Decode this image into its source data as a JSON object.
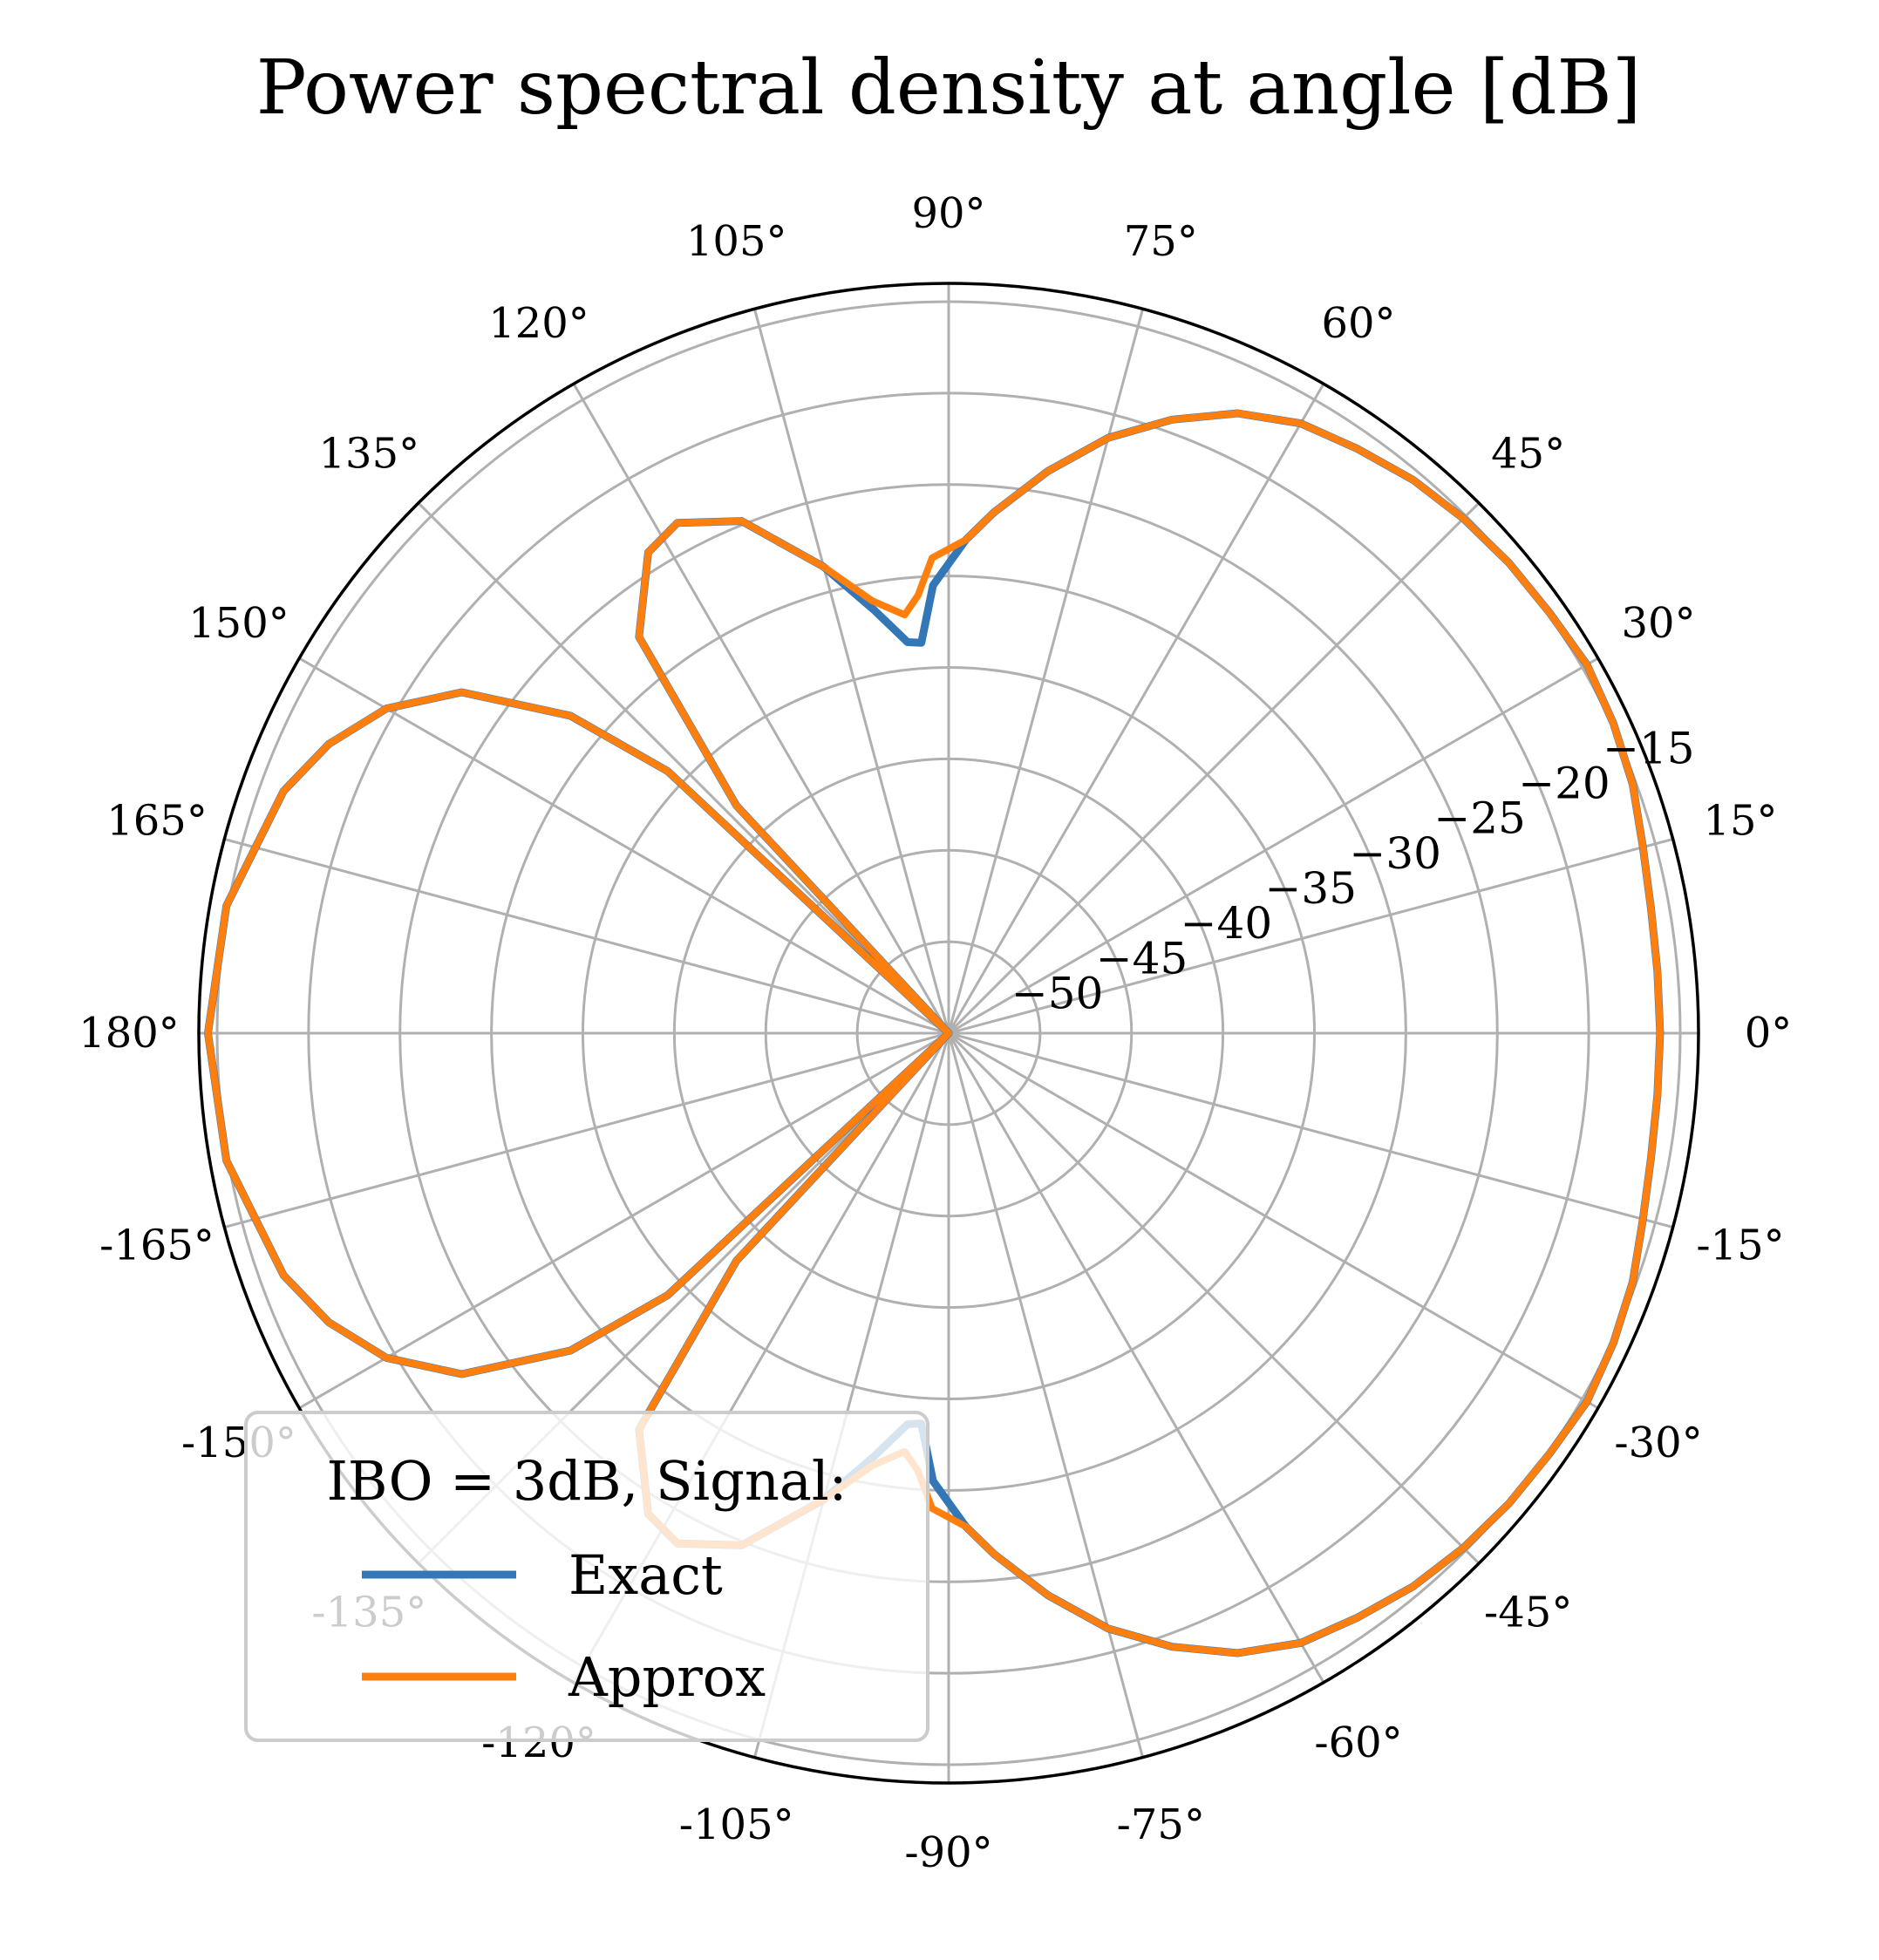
{
  "chart_data": {
    "type": "line",
    "projection": "polar",
    "title": "Power spectral density at angle [dB]",
    "theta_unit": "degrees",
    "theta_range": [
      -180,
      180
    ],
    "theta_ticks": [
      "0°",
      "15°",
      "30°",
      "45°",
      "60°",
      "75°",
      "90°",
      "105°",
      "120°",
      "135°",
      "150°",
      "165°",
      "180°",
      "-165°",
      "-150°",
      "-135°",
      "-120°",
      "-105°",
      "-90°",
      "-75°",
      "-60°",
      "-45°",
      "-30°",
      "-15°"
    ],
    "theta_tick_values": [
      0,
      15,
      30,
      45,
      60,
      75,
      90,
      105,
      120,
      135,
      150,
      165,
      180,
      -165,
      -150,
      -135,
      -120,
      -105,
      -90,
      -75,
      -60,
      -45,
      -30,
      -15
    ],
    "r_range": [
      -55,
      -14
    ],
    "r_ticks": [
      "−50",
      "−45",
      "−40",
      "−35",
      "−30",
      "−25",
      "−20",
      "−15"
    ],
    "r_tick_values": [
      -50,
      -45,
      -40,
      -35,
      -30,
      -25,
      -20,
      -15
    ],
    "r_label_angle": 22.5,
    "grid": true,
    "legend": {
      "title": "IBO = 3dB, Signal:",
      "placement": "lower-left",
      "entries": [
        "Exact",
        "Approx"
      ]
    },
    "series": [
      {
        "name": "Exact",
        "color": "#3477b6",
        "points": [
          [
            -180,
            -14.5
          ],
          [
            -170,
            -14.9
          ],
          [
            -160,
            -16.3
          ],
          [
            -155,
            -17.6
          ],
          [
            -150,
            -19.5
          ],
          [
            -145,
            -22.5
          ],
          [
            -140,
            -28.0
          ],
          [
            -137,
            -34.0
          ],
          [
            -135,
            -55.0
          ],
          [
            -133,
            -38.0
          ],
          [
            -128,
            -27.5
          ],
          [
            -122,
            -24.0
          ],
          [
            -118,
            -23.4
          ],
          [
            -112,
            -24.8
          ],
          [
            -105,
            -28.6
          ],
          [
            -100,
            -31.5
          ],
          [
            -96,
            -33.5
          ],
          [
            -94,
            -33.6
          ],
          [
            -92,
            -30.5
          ],
          [
            -88,
            -28.0
          ],
          [
            -85,
            -26.4
          ],
          [
            -80,
            -23.8
          ],
          [
            -75,
            -21.3
          ],
          [
            -70,
            -19.3
          ],
          [
            -65,
            -17.6
          ],
          [
            -60,
            -16.5
          ],
          [
            -55,
            -16.0
          ],
          [
            -50,
            -15.5
          ],
          [
            -45,
            -15.2
          ],
          [
            -40,
            -15.0
          ],
          [
            -35,
            -14.9
          ],
          [
            -30,
            -14.7
          ],
          [
            -25,
            -14.9
          ],
          [
            -20,
            -15.2
          ],
          [
            -15,
            -15.7
          ],
          [
            -10,
            -16.0
          ],
          [
            -5,
            -16.1
          ],
          [
            0,
            -16.1
          ],
          [
            5,
            -16.1
          ],
          [
            10,
            -16.0
          ],
          [
            15,
            -15.7
          ],
          [
            20,
            -15.2
          ],
          [
            25,
            -14.9
          ],
          [
            30,
            -14.7
          ],
          [
            35,
            -14.9
          ],
          [
            40,
            -15.0
          ],
          [
            45,
            -15.2
          ],
          [
            50,
            -15.5
          ],
          [
            55,
            -16.0
          ],
          [
            60,
            -16.5
          ],
          [
            65,
            -17.6
          ],
          [
            70,
            -19.3
          ],
          [
            75,
            -21.3
          ],
          [
            80,
            -23.8
          ],
          [
            85,
            -26.4
          ],
          [
            88,
            -28.0
          ],
          [
            92,
            -30.5
          ],
          [
            94,
            -33.6
          ],
          [
            96,
            -33.5
          ],
          [
            100,
            -31.5
          ],
          [
            105,
            -28.6
          ],
          [
            112,
            -24.8
          ],
          [
            118,
            -23.4
          ],
          [
            122,
            -24.0
          ],
          [
            128,
            -27.5
          ],
          [
            133,
            -38.0
          ],
          [
            135,
            -55.0
          ],
          [
            137,
            -34.0
          ],
          [
            140,
            -28.0
          ],
          [
            145,
            -22.5
          ],
          [
            150,
            -19.5
          ],
          [
            155,
            -17.6
          ],
          [
            160,
            -16.3
          ],
          [
            170,
            -14.9
          ],
          [
            180,
            -14.5
          ]
        ]
      },
      {
        "name": "Approx",
        "color": "#ff7f0e",
        "points": [
          [
            -180,
            -14.5
          ],
          [
            -170,
            -14.9
          ],
          [
            -160,
            -16.3
          ],
          [
            -155,
            -17.6
          ],
          [
            -150,
            -19.5
          ],
          [
            -145,
            -22.5
          ],
          [
            -140,
            -28.0
          ],
          [
            -137,
            -34.0
          ],
          [
            -135,
            -55.0
          ],
          [
            -133,
            -38.0
          ],
          [
            -128,
            -27.5
          ],
          [
            -122,
            -24.0
          ],
          [
            -118,
            -23.4
          ],
          [
            -112,
            -24.8
          ],
          [
            -105,
            -28.6
          ],
          [
            -100,
            -31.0
          ],
          [
            -96,
            -32.0
          ],
          [
            -94,
            -31.0
          ],
          [
            -92,
            -29.0
          ],
          [
            -88,
            -28.0
          ],
          [
            -85,
            -26.4
          ],
          [
            -80,
            -23.8
          ],
          [
            -75,
            -21.3
          ],
          [
            -70,
            -19.3
          ],
          [
            -65,
            -17.6
          ],
          [
            -60,
            -16.5
          ],
          [
            -55,
            -16.0
          ],
          [
            -50,
            -15.5
          ],
          [
            -45,
            -15.2
          ],
          [
            -40,
            -15.0
          ],
          [
            -35,
            -14.9
          ],
          [
            -30,
            -14.7
          ],
          [
            -25,
            -14.9
          ],
          [
            -20,
            -15.2
          ],
          [
            -15,
            -15.7
          ],
          [
            -10,
            -16.0
          ],
          [
            -5,
            -16.1
          ],
          [
            0,
            -16.1
          ],
          [
            5,
            -16.1
          ],
          [
            10,
            -16.0
          ],
          [
            15,
            -15.7
          ],
          [
            20,
            -15.2
          ],
          [
            25,
            -14.9
          ],
          [
            30,
            -14.7
          ],
          [
            35,
            -14.9
          ],
          [
            40,
            -15.0
          ],
          [
            45,
            -15.2
          ],
          [
            50,
            -15.5
          ],
          [
            55,
            -16.0
          ],
          [
            60,
            -16.5
          ],
          [
            65,
            -17.6
          ],
          [
            70,
            -19.3
          ],
          [
            75,
            -21.3
          ],
          [
            80,
            -23.8
          ],
          [
            85,
            -26.4
          ],
          [
            88,
            -28.0
          ],
          [
            92,
            -29.0
          ],
          [
            94,
            -31.0
          ],
          [
            96,
            -32.0
          ],
          [
            100,
            -31.0
          ],
          [
            105,
            -28.6
          ],
          [
            112,
            -24.8
          ],
          [
            118,
            -23.4
          ],
          [
            122,
            -24.0
          ],
          [
            128,
            -27.5
          ],
          [
            133,
            -38.0
          ],
          [
            135,
            -55.0
          ],
          [
            137,
            -34.0
          ],
          [
            140,
            -28.0
          ],
          [
            145,
            -22.5
          ],
          [
            150,
            -19.5
          ],
          [
            155,
            -17.6
          ],
          [
            160,
            -16.3
          ],
          [
            170,
            -14.9
          ],
          [
            180,
            -14.5
          ]
        ]
      }
    ]
  }
}
